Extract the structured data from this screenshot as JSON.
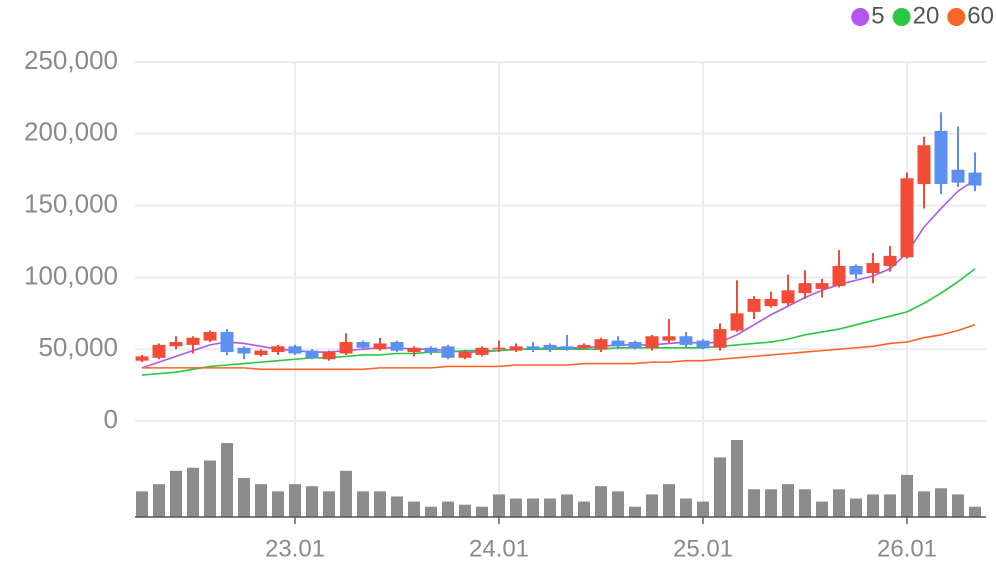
{
  "chart_data": {
    "type": "candlestick",
    "categories": [
      null,
      null,
      null,
      null,
      null,
      null,
      null,
      null,
      null,
      "23.01",
      null,
      null,
      null,
      null,
      null,
      null,
      null,
      null,
      null,
      null,
      null,
      "24.01",
      null,
      null,
      null,
      null,
      null,
      null,
      null,
      null,
      null,
      null,
      null,
      "25.01",
      null,
      null,
      null,
      null,
      null,
      null,
      null,
      null,
      null,
      null,
      null,
      "26.01",
      null,
      null,
      null,
      null
    ],
    "open": [
      42000,
      44000,
      52000,
      53000,
      56000,
      62000,
      51000,
      46000,
      48000,
      52000,
      49000,
      43000,
      47000,
      55000,
      50000,
      55000,
      48000,
      51000,
      52000,
      44000,
      46000,
      50000,
      49000,
      52000,
      53000,
      52000,
      51000,
      50000,
      56000,
      55000,
      51000,
      56000,
      59000,
      56000,
      51000,
      63000,
      76000,
      80000,
      82000,
      89000,
      92000,
      94000,
      108000,
      103000,
      108000,
      114000,
      165000,
      202000,
      175000,
      173000
    ],
    "high": [
      46000,
      54000,
      59000,
      59000,
      63000,
      64000,
      52000,
      50000,
      53000,
      53000,
      50000,
      49000,
      61000,
      56000,
      58000,
      56000,
      52000,
      52000,
      53000,
      49000,
      52000,
      56000,
      54000,
      55000,
      54000,
      60000,
      54000,
      58000,
      59000,
      56000,
      60000,
      71000,
      62000,
      57000,
      68000,
      98000,
      87000,
      90000,
      102000,
      105000,
      99000,
      119000,
      109000,
      117000,
      122000,
      173000,
      198000,
      215000,
      205000,
      187000
    ],
    "low": [
      41000,
      43000,
      50000,
      47000,
      55000,
      46000,
      43000,
      45000,
      46000,
      46000,
      43000,
      42000,
      46000,
      50000,
      49000,
      48000,
      45000,
      46000,
      43000,
      43000,
      45000,
      48000,
      48000,
      48000,
      48000,
      49000,
      50000,
      48000,
      50000,
      50000,
      49000,
      54000,
      51000,
      50000,
      49000,
      62000,
      71000,
      79000,
      80000,
      85000,
      86000,
      93000,
      99000,
      96000,
      104000,
      113000,
      148000,
      158000,
      163000,
      160000
    ],
    "close": [
      45000,
      53000,
      55000,
      58000,
      62000,
      48000,
      47000,
      49000,
      52000,
      47000,
      44000,
      48000,
      55000,
      51000,
      54000,
      49000,
      51000,
      48000,
      44000,
      48000,
      51000,
      51000,
      52000,
      50000,
      50000,
      50000,
      53000,
      57000,
      52000,
      51000,
      59000,
      59000,
      53000,
      51000,
      64000,
      75000,
      85000,
      85000,
      91000,
      96000,
      96000,
      108000,
      102000,
      110000,
      115000,
      169000,
      192000,
      165000,
      166000,
      164000
    ],
    "up_color": "#f24b38",
    "down_color": "#5b8ff0",
    "series": [
      {
        "name": "5",
        "color": "#b455f0",
        "values": [
          37000,
          41000,
          45000,
          49000,
          53000,
          55000,
          54000,
          52000,
          50000,
          49000,
          48000,
          48000,
          49000,
          50000,
          51000,
          51000,
          50000,
          50000,
          49000,
          48000,
          48000,
          49000,
          50000,
          50000,
          51000,
          51000,
          51000,
          52000,
          53000,
          53000,
          53000,
          54000,
          55000,
          54000,
          55000,
          60000,
          67000,
          74000,
          80000,
          86000,
          91000,
          95000,
          98000,
          101000,
          106000,
          117000,
          135000,
          148000,
          160000,
          168000
        ]
      },
      {
        "name": "20",
        "color": "#28c840",
        "values": [
          32000,
          33000,
          34000,
          36000,
          38000,
          39000,
          40000,
          41000,
          42000,
          43000,
          44000,
          44000,
          45000,
          46000,
          46000,
          47000,
          47000,
          48000,
          48000,
          49000,
          49000,
          49000,
          50000,
          50000,
          50000,
          50000,
          50000,
          50000,
          51000,
          51000,
          51000,
          51000,
          51000,
          51000,
          52000,
          53000,
          54000,
          55000,
          57000,
          60000,
          62000,
          64000,
          67000,
          70000,
          73000,
          76000,
          82000,
          89000,
          97000,
          106000
        ]
      },
      {
        "name": "60",
        "color": "#f76528",
        "values": [
          37000,
          37000,
          37000,
          37000,
          37000,
          37000,
          37000,
          36000,
          36000,
          36000,
          36000,
          36000,
          36000,
          36000,
          37000,
          37000,
          37000,
          37000,
          38000,
          38000,
          38000,
          38000,
          39000,
          39000,
          39000,
          39000,
          40000,
          40000,
          40000,
          40000,
          41000,
          41000,
          42000,
          42000,
          43000,
          44000,
          45000,
          46000,
          47000,
          48000,
          49000,
          50000,
          51000,
          52000,
          54000,
          55000,
          58000,
          60000,
          63000,
          67000
        ]
      }
    ],
    "volume": [
      25,
      32,
      45,
      48,
      55,
      72,
      38,
      32,
      25,
      32,
      30,
      25,
      45,
      25,
      25,
      20,
      15,
      10,
      15,
      12,
      10,
      22,
      18,
      18,
      18,
      22,
      15,
      30,
      25,
      10,
      22,
      32,
      18,
      15,
      58,
      75,
      27,
      27,
      32,
      27,
      15,
      27,
      18,
      22,
      22,
      41,
      25,
      28,
      22,
      10
    ],
    "volume_color": "#8c8c8c",
    "ylim": [
      0,
      250000
    ],
    "yticks": [
      0,
      {
        "value": 50000,
        "label": "50,000"
      },
      {
        "value": 100000,
        "label": "100,000"
      },
      {
        "value": 150000,
        "label": "150,000"
      },
      {
        "value": 200000,
        "label": "200,000"
      },
      {
        "value": 250000,
        "label": "250,000"
      }
    ],
    "grid": true
  }
}
